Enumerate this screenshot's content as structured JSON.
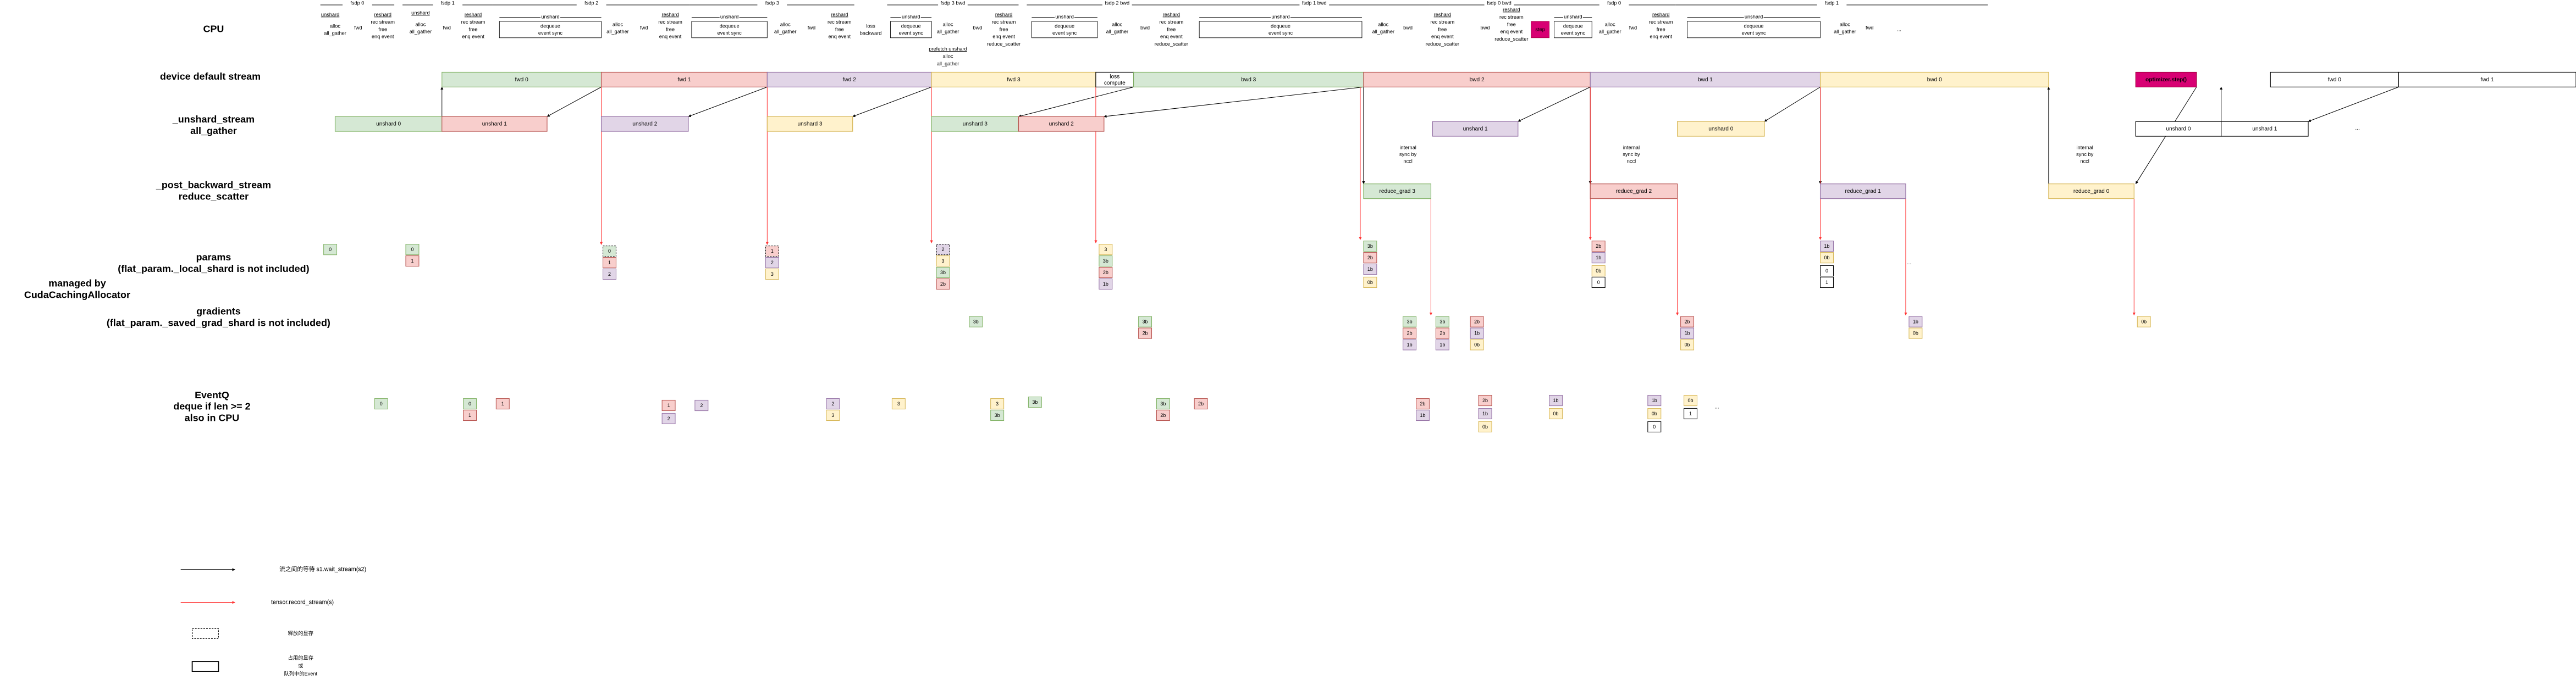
{
  "row_labels": [
    [
      "CPU"
    ],
    [
      "device default stream"
    ],
    [
      "_unshard_stream",
      "all_gather"
    ],
    [
      "_post_backward_stream",
      "reduce_scatter"
    ],
    [
      "params",
      "(flat_param._local_shard is not included)"
    ],
    [
      "managed by",
      "CudaCachingAllocator"
    ],
    [
      "gradients",
      "(flat_param._saved_grad_shard is not included)"
    ],
    [
      "EventQ",
      "deque if len >= 2",
      "also in CPU"
    ]
  ],
  "brackets": [
    "fsdp 0",
    "fsdp 1",
    "fsdp 2",
    "fsdp 3",
    "fsdp 3 bwd",
    "fsdp 2 bwd",
    "fsdp 1 bwd",
    "fsdp 0 bwd",
    "fsdp 0",
    "fsdp 1"
  ],
  "cpu_text": [
    [
      "unshard"
    ],
    [
      "alloc",
      "all_gather"
    ],
    [
      "fwd"
    ],
    [
      "reshard",
      "rec stream",
      "free",
      "enq event"
    ],
    [
      "unshard"
    ],
    [
      "alloc",
      "all_gather"
    ],
    [
      "fwd"
    ],
    [
      "reshard",
      "rec stream",
      "free",
      "enq event"
    ],
    [
      "alloc",
      "all_gather"
    ],
    [
      "fwd"
    ],
    [
      "reshard",
      "rec stream",
      "free",
      "enq event"
    ],
    [
      "alloc",
      "all_gather"
    ],
    [
      "fwd"
    ],
    [
      "reshard",
      "rec stream",
      "free",
      "enq event"
    ],
    [
      "loss",
      "backward"
    ],
    [
      "alloc",
      "all_gather"
    ],
    [
      "prefetch unshard",
      "alloc",
      "all_gather"
    ],
    [
      "bwd"
    ],
    [
      "reshard",
      "rec stream",
      "free",
      "enq event",
      "reduce_scatter"
    ],
    [
      "alloc",
      "all_gather"
    ],
    [
      "bwd"
    ],
    [
      "reshard",
      "rec stream",
      "free",
      "enq event",
      "reduce_scatter"
    ],
    [
      "alloc",
      "all_gather"
    ],
    [
      "bwd"
    ],
    [
      "reshard",
      "rec stream",
      "free",
      "enq event",
      "reduce_scatter"
    ],
    [
      "bwd"
    ],
    [
      "reshard",
      "rec stream",
      "free",
      "enq event",
      "reduce_scatter"
    ],
    [
      "alloc",
      "all_gather"
    ],
    [
      "fwd"
    ],
    [
      "reshard",
      "rec stream",
      "free",
      "enq event"
    ],
    [
      "alloc",
      "all_gather"
    ],
    [
      "fwd"
    ],
    [
      "..."
    ]
  ],
  "dequeue_boxes": [
    {
      "title": "unshard",
      "lines": [
        "dequeue",
        "event sync"
      ]
    },
    {
      "title": "unshard",
      "lines": [
        "dequeue",
        "event sync"
      ]
    },
    {
      "title": "unshard",
      "lines": [
        "dequeue",
        "event sync"
      ]
    },
    {
      "title": "unshard",
      "lines": [
        "dequeue",
        "event sync"
      ]
    },
    {
      "title": "unshard",
      "lines": [
        "dequeue",
        "event sync"
      ]
    },
    {
      "title": "unshard",
      "lines": [
        "dequeue",
        "event sync"
      ]
    },
    {
      "title": "unshard",
      "lines": [
        "dequeue",
        "event sync"
      ]
    }
  ],
  "step_box": {
    "label": "step",
    "color": "magenta"
  },
  "stream_boxes": [
    {
      "label": "fwd 0",
      "color": "green"
    },
    {
      "label": "fwd 1",
      "color": "red"
    },
    {
      "label": "fwd 2",
      "color": "purple"
    },
    {
      "label": "fwd 3",
      "color": "yellow"
    },
    {
      "label": "loss compute",
      "color": "white"
    },
    {
      "label": "bwd 3",
      "color": "green"
    },
    {
      "label": "bwd 2",
      "color": "red"
    },
    {
      "label": "bwd 1",
      "color": "purple"
    },
    {
      "label": "bwd 0",
      "color": "yellow"
    },
    {
      "label": "optimizer.step()",
      "color": "magenta"
    },
    {
      "label": "fwd 0",
      "color": "white"
    },
    {
      "label": "fwd 1",
      "color": "white"
    },
    {
      "label": "unshard 0",
      "color": "green"
    },
    {
      "label": "unshard 1",
      "color": "red"
    },
    {
      "label": "unshard 2",
      "color": "purple"
    },
    {
      "label": "unshard 3",
      "color": "yellow"
    },
    {
      "label": "unshard 3",
      "color": "green"
    },
    {
      "label": "unshard 2",
      "color": "red"
    },
    {
      "label": "unshard 1",
      "color": "purple"
    },
    {
      "label": "unshard 0",
      "color": "yellow"
    },
    {
      "label": "unshard 0",
      "color": "white"
    },
    {
      "label": "unshard 1",
      "color": "white"
    },
    {
      "label": "reduce_grad 3",
      "color": "green"
    },
    {
      "label": "reduce_grad 2",
      "color": "red"
    },
    {
      "label": "reduce_grad 1",
      "color": "purple"
    },
    {
      "label": "reduce_grad 0",
      "color": "yellow"
    }
  ],
  "notes": [
    [
      "internal",
      "sync by",
      "nccl"
    ],
    [
      "internal",
      "sync by",
      "nccl"
    ],
    [
      "internal",
      "sync by",
      "nccl"
    ]
  ],
  "ellipses": [
    "...",
    "...",
    "..."
  ],
  "params_cells": [
    {
      "label": "0",
      "color": "green"
    },
    {
      "label": "0",
      "color": "green"
    },
    {
      "label": "1",
      "color": "red"
    },
    {
      "label": "0",
      "color": "green",
      "freed": true
    },
    {
      "label": "1",
      "color": "red"
    },
    {
      "label": "2",
      "color": "purple"
    },
    {
      "label": "1",
      "color": "red",
      "freed": true
    },
    {
      "label": "2",
      "color": "purple"
    },
    {
      "label": "3",
      "color": "yellow"
    },
    {
      "label": "2",
      "color": "purple",
      "freed": true
    },
    {
      "label": "3",
      "color": "yellow"
    },
    {
      "label": "3b",
      "color": "green"
    },
    {
      "label": "2b",
      "color": "red"
    },
    {
      "label": "3",
      "color": "yellow"
    },
    {
      "label": "3b",
      "color": "green"
    },
    {
      "label": "2b",
      "color": "red"
    },
    {
      "label": "1b",
      "color": "purple"
    },
    {
      "label": "3b",
      "color": "green"
    },
    {
      "label": "2b",
      "color": "red"
    },
    {
      "label": "1b",
      "color": "purple"
    },
    {
      "label": "0b",
      "color": "yellow"
    },
    {
      "label": "2b",
      "color": "red"
    },
    {
      "label": "1b",
      "color": "purple"
    },
    {
      "label": "0b",
      "color": "yellow"
    },
    {
      "label": "0",
      "color": "white"
    },
    {
      "label": "1b",
      "color": "purple"
    },
    {
      "label": "0b",
      "color": "yellow"
    },
    {
      "label": "0",
      "color": "white"
    },
    {
      "label": "1",
      "color": "white"
    }
  ],
  "gradient_cells": [
    {
      "label": "3b",
      "color": "green"
    },
    {
      "label": "3b",
      "color": "green"
    },
    {
      "label": "2b",
      "color": "red"
    },
    {
      "label": "3b",
      "color": "green"
    },
    {
      "label": "2b",
      "color": "red"
    },
    {
      "label": "1b",
      "color": "purple"
    },
    {
      "label": "3b",
      "color": "green"
    },
    {
      "label": "2b",
      "color": "red"
    },
    {
      "label": "1b",
      "color": "purple"
    },
    {
      "label": "2b",
      "color": "red"
    },
    {
      "label": "1b",
      "color": "purple"
    },
    {
      "label": "0b",
      "color": "yellow"
    },
    {
      "label": "2b",
      "color": "red"
    },
    {
      "label": "1b",
      "color": "purple"
    },
    {
      "label": "0b",
      "color": "yellow"
    },
    {
      "label": "1b",
      "color": "purple"
    },
    {
      "label": "0b",
      "color": "yellow"
    },
    {
      "label": "0b",
      "color": "yellow"
    }
  ],
  "eventq_cells": [
    {
      "label": "0",
      "color": "green"
    },
    {
      "label": "0",
      "color": "green"
    },
    {
      "label": "1",
      "color": "red"
    },
    {
      "label": "1",
      "color": "red"
    },
    {
      "label": "1",
      "color": "red"
    },
    {
      "label": "2",
      "color": "purple"
    },
    {
      "label": "2",
      "color": "purple"
    },
    {
      "label": "2",
      "color": "purple"
    },
    {
      "label": "3",
      "color": "yellow"
    },
    {
      "label": "3",
      "color": "yellow"
    },
    {
      "label": "3",
      "color": "yellow"
    },
    {
      "label": "3b",
      "color": "green"
    },
    {
      "label": "3b",
      "color": "green"
    },
    {
      "label": "3b",
      "color": "green"
    },
    {
      "label": "2b",
      "color": "red"
    },
    {
      "label": "2b",
      "color": "red"
    },
    {
      "label": "2b",
      "color": "red"
    },
    {
      "label": "1b",
      "color": "purple"
    },
    {
      "label": "2b",
      "color": "red"
    },
    {
      "label": "1b",
      "color": "purple"
    },
    {
      "label": "0b",
      "color": "yellow"
    },
    {
      "label": "1b",
      "color": "purple"
    },
    {
      "label": "0b",
      "color": "yellow"
    },
    {
      "label": "1b",
      "color": "purple"
    },
    {
      "label": "0b",
      "color": "yellow"
    },
    {
      "label": "0",
      "color": "white"
    },
    {
      "label": "0b",
      "color": "yellow"
    },
    {
      "label": "1",
      "color": "white"
    }
  ],
  "legend": [
    [
      "流之间的等待 s1.wait_stream(s2)"
    ],
    [
      "tensor.record_stream(s)"
    ],
    [
      "释放的显存"
    ],
    [
      "占用的显存",
      "或",
      "队列中的Event"
    ]
  ]
}
